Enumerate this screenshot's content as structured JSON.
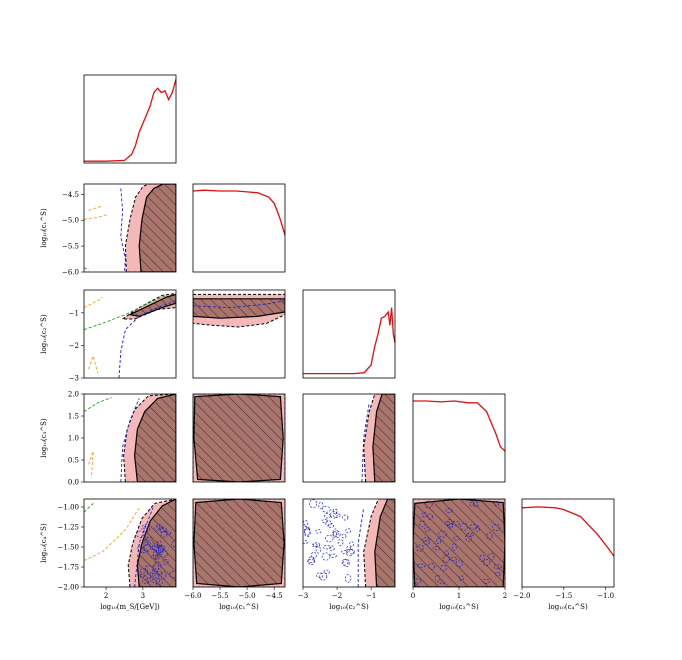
{
  "chart_data": {
    "type": "corner",
    "description_keys": [
      "variables",
      "panels",
      "legend"
    ],
    "variables": [
      {
        "id": "m",
        "label": "log10(m_S/[GeV])",
        "range": [
          1.4,
          3.9
        ],
        "ticks": [
          2,
          3
        ],
        "tick_labels": [
          "2",
          "3"
        ]
      },
      {
        "id": "c1",
        "label": "log10(c_1^S)",
        "range": [
          -6.0,
          -4.3
        ],
        "ticks": [
          -6.0,
          -5.5,
          -5.0,
          -4.5
        ],
        "tick_labels": [
          "−6.0",
          "−5.5",
          "−5.0",
          "−4.5"
        ]
      },
      {
        "id": "c2",
        "label": "log10(c_2^S)",
        "range": [
          -3.0,
          -0.3
        ],
        "ticks": [
          -3,
          -2,
          -1
        ],
        "tick_labels": [
          "−3",
          "−2",
          "−1"
        ]
      },
      {
        "id": "c3",
        "label": "log10(c_3^S)",
        "range": [
          0.0,
          2.0
        ],
        "ticks": [
          0.0,
          0.5,
          1.0,
          1.5,
          2.0
        ],
        "tick_labels": [
          "0.0",
          "0.5",
          "1.0",
          "1.5",
          "2.0"
        ],
        "x_ticks": [
          0,
          1,
          2
        ],
        "x_tick_labels": [
          "0",
          "1",
          "2"
        ]
      },
      {
        "id": "c4",
        "label": "log10(c_4^S)",
        "range": [
          -2.0,
          -0.9
        ],
        "ticks": [
          -2.0,
          -1.75,
          -1.5,
          -1.25,
          -1.0
        ],
        "tick_labels": [
          "−2.00",
          "−1.75",
          "−1.50",
          "−1.25",
          "−1.00"
        ],
        "x_ticks": [
          -2.0,
          -1.5,
          -1.0
        ],
        "x_tick_labels": [
          "−2.0",
          "−1.5",
          "−1.0"
        ]
      }
    ],
    "axis_labels_display": {
      "m": "log₁₀(m_S/[GeV])",
      "c1": "log₁₀(c₁^S)",
      "c2": "log₁₀(c₂^S)",
      "c3": "log₁₀(c₃^S)",
      "c4": "log₁₀(c₄^S)"
    },
    "diagonal": [
      {
        "var": "m",
        "x": [
          1.4,
          2.0,
          2.5,
          2.7,
          2.8,
          2.9,
          3.0,
          3.1,
          3.2,
          3.3,
          3.4,
          3.5,
          3.6,
          3.7,
          3.8,
          3.9
        ],
        "y": [
          0.02,
          0.02,
          0.03,
          0.1,
          0.2,
          0.35,
          0.45,
          0.55,
          0.65,
          0.8,
          0.85,
          0.8,
          0.82,
          0.72,
          0.8,
          0.95
        ]
      },
      {
        "var": "c1",
        "x": [
          -6.0,
          -5.8,
          -5.5,
          -5.2,
          -5.0,
          -4.8,
          -4.6,
          -4.5,
          -4.4,
          -4.3
        ],
        "y": [
          0.92,
          0.93,
          0.92,
          0.92,
          0.91,
          0.9,
          0.85,
          0.78,
          0.62,
          0.42
        ]
      },
      {
        "var": "c2",
        "x": [
          -3.0,
          -2.5,
          -2.0,
          -1.5,
          -1.2,
          -1.0,
          -0.9,
          -0.8,
          -0.7,
          -0.6,
          -0.5,
          -0.45,
          -0.4,
          -0.35,
          -0.3
        ],
        "y": [
          0.05,
          0.05,
          0.05,
          0.05,
          0.06,
          0.15,
          0.35,
          0.5,
          0.68,
          0.7,
          0.75,
          0.6,
          0.8,
          0.5,
          0.4
        ]
      },
      {
        "var": "c3",
        "x": [
          0.0,
          0.3,
          0.6,
          0.9,
          1.2,
          1.4,
          1.6,
          1.8,
          1.9,
          2.0
        ],
        "y": [
          0.92,
          0.92,
          0.91,
          0.92,
          0.9,
          0.9,
          0.8,
          0.55,
          0.4,
          0.35
        ]
      },
      {
        "var": "c4",
        "x": [
          -2.0,
          -1.8,
          -1.6,
          -1.5,
          -1.4,
          -1.3,
          -1.2,
          -1.1,
          -1.0,
          -0.9
        ],
        "y": [
          0.9,
          0.91,
          0.9,
          0.88,
          0.84,
          0.8,
          0.7,
          0.6,
          0.48,
          0.35
        ]
      }
    ],
    "legend": {
      "hatched": "excluded region (solid black contour, hatched)",
      "pink": "dashed black contour region",
      "blue_dashed": "blue dashed contour",
      "orange_dashed": "orange dashed contour",
      "green_dashed": "green dashed contour",
      "red_line": "1D marginal curve"
    },
    "colors": {
      "hatch_fill": "#a8746c",
      "pink_fill": "#f4b8b8",
      "blue": "#1f1fcf",
      "orange": "#f0a020",
      "green": "#22a022",
      "red": "#e01010"
    }
  }
}
